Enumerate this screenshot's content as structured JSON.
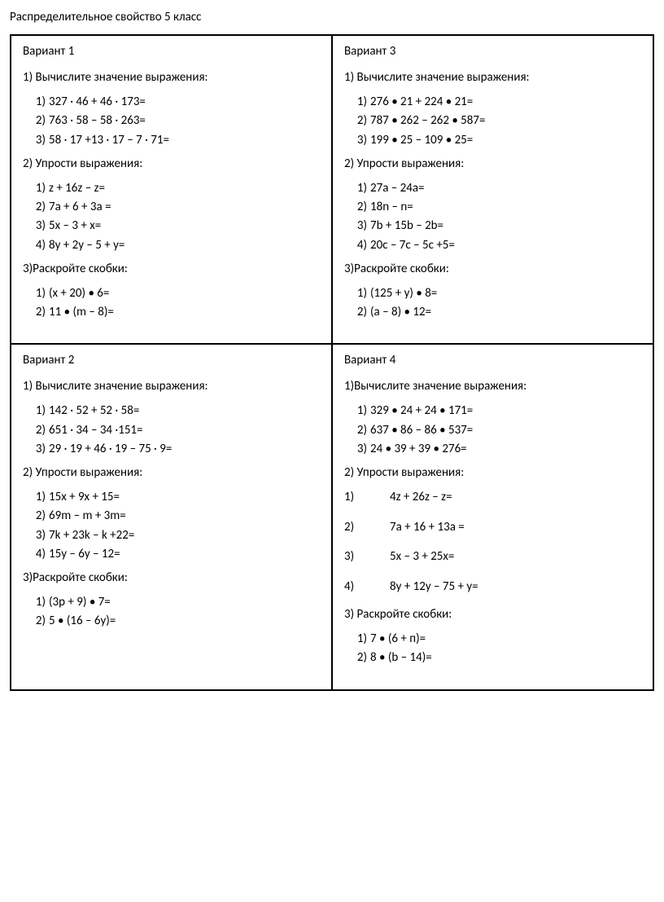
{
  "page_title": "Распределительное свойство 5 класс",
  "variants": {
    "v1": {
      "title": "Вариант 1",
      "sections": [
        {
          "label": "1) Вычислите значение выражения:",
          "items": [
            "327 · 46 + 46 · 173=",
            "763 · 58 – 58 · 263=",
            "58 · 17 +13 · 17 – 7 · 71="
          ]
        },
        {
          "label": "2) Упрости выражения:",
          "items": [
            "z + 16z – z=",
            "7а + 6 + 3а =",
            "5х – 3 + х=",
            "8у + 2у – 5 + у="
          ]
        },
        {
          "label": "3)Раскройте скобки:",
          "items": [
            "(х + 20)  • 6=",
            "11 • (m – 8)="
          ]
        }
      ]
    },
    "v3": {
      "title": "Вариант 3",
      "sections": [
        {
          "label": "1) Вычислите значение выражения:",
          "items": [
            "276 • 21 + 224 • 21=",
            "787 • 262 – 262 • 587=",
            "199 • 25 – 109 • 25="
          ]
        },
        {
          "label": "2) Упрости выражения:",
          "items": [
            "27а – 24а=",
            "18n – n=",
            "7b + 15b – 2b=",
            "20c – 7c – 5c +5="
          ]
        },
        {
          "label": "3)Раскройте скобки:",
          "items": [
            "(125 + у) • 8=",
            "(а – 8) • 12="
          ]
        }
      ]
    },
    "v2": {
      "title": "Вариант 2",
      "sections": [
        {
          "label": "1) Вычислите значение выражения:",
          "items": [
            "142 · 52 + 52 · 58=",
            "651 · 34 – 34 ·151=",
            "29 · 19 + 46 · 19 – 75 · 9="
          ]
        },
        {
          "label": "2) Упрости выражения:",
          "items": [
            "15x + 9x + 15=",
            "69m – m + 3m=",
            "7k + 23k – k +22=",
            "15y – 6y – 12="
          ]
        },
        {
          "label": "3)Раскройте скобки:",
          "items": [
            "(3р + 9)  • 7=",
            "5 • (16 – 6у)="
          ]
        }
      ]
    },
    "v4": {
      "title": "Вариант 4",
      "sections_head": [
        {
          "label": "1)Вычислите значение выражения:",
          "items": [
            "329 • 24 + 24 • 171=",
            "637 • 86 – 86 • 537=",
            "24 • 39 + 39 • 276="
          ]
        }
      ],
      "simplify_label": "2) Упрости выражения:",
      "simplify_items": [
        "4z + 26z – z=",
        "7а + 16 + 13а =",
        "5х – 3 + 25х=",
        "8у + 12y – 75 + y="
      ],
      "sections_tail": [
        {
          "label": "3) Раскройте скобки:",
          "items": [
            "7 • (6 + п)=",
            "8 • (b – 14)="
          ]
        }
      ]
    }
  }
}
